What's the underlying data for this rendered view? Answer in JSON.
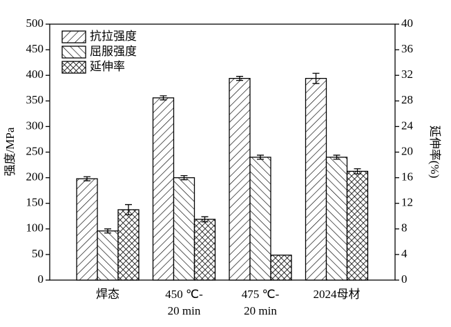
{
  "chart_data": {
    "type": "bar",
    "categories": [
      [
        "焊态"
      ],
      [
        "450 ℃-",
        "20 min"
      ],
      [
        "475 ℃-",
        "20 min"
      ],
      [
        "2024母材"
      ]
    ],
    "y_label": "强度/MPa",
    "y2_label": "延伸率(%)",
    "ylim": [
      0,
      500
    ],
    "yticks": [
      0,
      50,
      100,
      150,
      200,
      250,
      300,
      350,
      400,
      450,
      500
    ],
    "y2lim": [
      0,
      40
    ],
    "y2ticks": [
      0,
      4,
      8,
      12,
      16,
      20,
      24,
      28,
      32,
      36,
      40
    ],
    "legend": "upper left",
    "series": [
      {
        "name": "抗拉强度",
        "color": "#000000",
        "values": [
          198,
          356,
          394,
          394
        ],
        "errors": [
          4,
          4,
          4,
          10
        ]
      },
      {
        "name": "屈服强度",
        "color": "#000000",
        "values": [
          96,
          200,
          240,
          240
        ],
        "errors": [
          4,
          4,
          4,
          4
        ]
      },
      {
        "name": "延伸率",
        "color": "#000000",
        "axis": "y2",
        "values": [
          11.0,
          9.5,
          3.9,
          17.0
        ],
        "errors": [
          0.8,
          0.4,
          0,
          0.4
        ]
      }
    ]
  }
}
